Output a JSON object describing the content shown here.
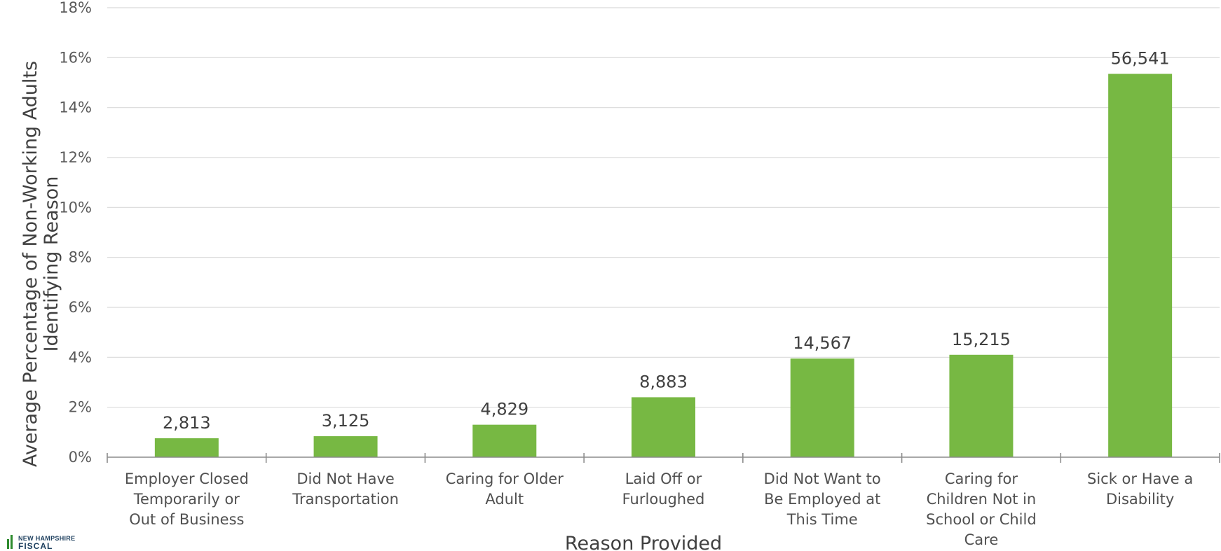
{
  "chart_data": {
    "type": "bar",
    "categories": [
      [
        "Employer Closed",
        "Temporarily or",
        "Out of Business"
      ],
      [
        "Did Not Have",
        "Transportation"
      ],
      [
        "Caring for Older",
        "Adult"
      ],
      [
        "Laid Off or",
        "Furloughed"
      ],
      [
        "Did Not Want to",
        "Be Employed at",
        "This Time"
      ],
      [
        "Caring for",
        "Children Not in",
        "School or Child",
        "Care"
      ],
      [
        "Sick or Have a",
        "Disability"
      ]
    ],
    "values": [
      0.76,
      0.84,
      1.3,
      2.4,
      3.95,
      4.1,
      15.35
    ],
    "data_labels": [
      "2,813",
      "3,125",
      "4,829",
      "8,883",
      "14,567",
      "15,215",
      "56,541"
    ],
    "ylim": [
      0,
      18
    ],
    "yticks": [
      "0%",
      "2%",
      "4%",
      "6%",
      "8%",
      "10%",
      "12%",
      "14%",
      "16%",
      "18%"
    ],
    "ylabel": [
      "Average Percentage of Non-Working Adults",
      "Identifying Reason"
    ],
    "xlabel": "Reason Provided",
    "grid": true,
    "bar_color": "#77b843"
  },
  "logo": {
    "line1": "NEW HAMPSHIRE",
    "line2": "FISCAL"
  }
}
